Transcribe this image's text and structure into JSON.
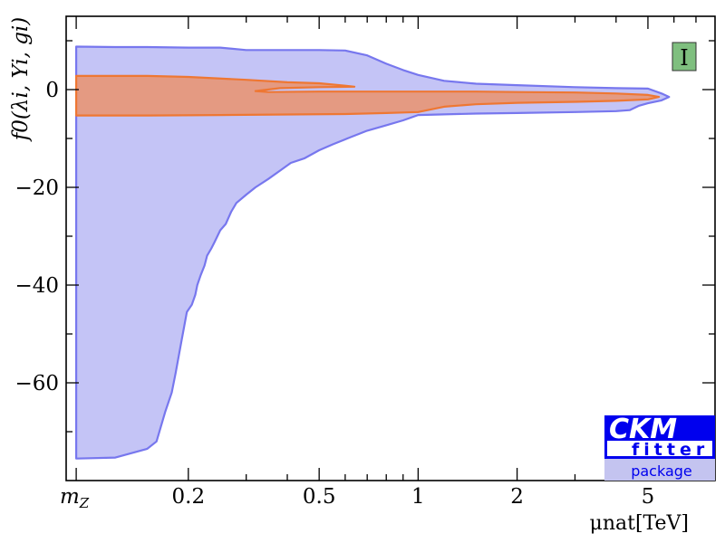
{
  "chart_data": {
    "type": "area",
    "title": "",
    "xlabel": "μnat[TeV]",
    "ylabel": "f0(λi, Yi, gi)",
    "x_scale": "log",
    "xlim": [
      0.085,
      8.0
    ],
    "ylim": [
      -80,
      15
    ],
    "x_ticks": [
      {
        "value": 0.0912,
        "label": "m_Z"
      },
      {
        "value": 0.2,
        "label": "0.2"
      },
      {
        "value": 0.5,
        "label": "0.5"
      },
      {
        "value": 1,
        "label": "1"
      },
      {
        "value": 2,
        "label": "2"
      },
      {
        "value": 5,
        "label": "5"
      }
    ],
    "y_ticks": [
      0,
      -20,
      -40,
      -60
    ],
    "y_tick_labels": [
      "0",
      "−20",
      "−40",
      "−60"
    ],
    "grid": false,
    "badge": "I",
    "series": [
      {
        "color": "#7777ee",
        "fill": "#c4c4f6",
        "polygon": [
          [
            0.0912,
            8.8
          ],
          [
            0.12,
            8.7
          ],
          [
            0.15,
            8.7
          ],
          [
            0.2,
            8.6
          ],
          [
            0.25,
            8.6
          ],
          [
            0.3,
            8.1
          ],
          [
            0.4,
            8.1
          ],
          [
            0.5,
            8.1
          ],
          [
            0.6,
            8.0
          ],
          [
            0.7,
            7.0
          ],
          [
            0.8,
            5.3
          ],
          [
            0.9,
            4.0
          ],
          [
            1.0,
            3.0
          ],
          [
            1.2,
            1.8
          ],
          [
            1.5,
            1.2
          ],
          [
            2.0,
            0.9
          ],
          [
            3.0,
            0.5
          ],
          [
            4.0,
            0.3
          ],
          [
            5.0,
            0.2
          ],
          [
            5.5,
            -0.8
          ],
          [
            5.8,
            -1.5
          ],
          [
            5.5,
            -2.2
          ],
          [
            5.0,
            -2.8
          ],
          [
            4.7,
            -3.3
          ],
          [
            4.4,
            -4.2
          ],
          [
            4.0,
            -4.4
          ],
          [
            3.0,
            -4.6
          ],
          [
            2.0,
            -4.8
          ],
          [
            1.5,
            -4.9
          ],
          [
            1.0,
            -5.2
          ],
          [
            0.9,
            -6.3
          ],
          [
            0.8,
            -7.3
          ],
          [
            0.7,
            -8.4
          ],
          [
            0.62,
            -9.8
          ],
          [
            0.55,
            -11.2
          ],
          [
            0.5,
            -12.4
          ],
          [
            0.45,
            -14.1
          ],
          [
            0.41,
            -15.0
          ],
          [
            0.38,
            -16.6
          ],
          [
            0.35,
            -18.3
          ],
          [
            0.32,
            -20.0
          ],
          [
            0.3,
            -21.5
          ],
          [
            0.28,
            -23.2
          ],
          [
            0.27,
            -25.0
          ],
          [
            0.26,
            -27.5
          ],
          [
            0.25,
            -28.8
          ],
          [
            0.24,
            -31.3
          ],
          [
            0.235,
            -32.5
          ],
          [
            0.228,
            -34.0
          ],
          [
            0.224,
            -36.0
          ],
          [
            0.218,
            -38.0
          ],
          [
            0.213,
            -40.0
          ],
          [
            0.21,
            -42.0
          ],
          [
            0.205,
            -44.0
          ],
          [
            0.198,
            -45.5
          ],
          [
            0.19,
            -52.0
          ],
          [
            0.183,
            -58.0
          ],
          [
            0.178,
            -62.0
          ],
          [
            0.17,
            -66.0
          ],
          [
            0.16,
            -72.0
          ],
          [
            0.15,
            -73.5
          ],
          [
            0.12,
            -75.3
          ],
          [
            0.0912,
            -75.5
          ]
        ]
      },
      {
        "color": "#ee7733",
        "fill": "#e49a82",
        "polygon": [
          [
            0.0912,
            2.8
          ],
          [
            0.15,
            2.8
          ],
          [
            0.2,
            2.6
          ],
          [
            0.3,
            2.0
          ],
          [
            0.4,
            1.5
          ],
          [
            0.5,
            1.3
          ],
          [
            0.6,
            0.8
          ],
          [
            0.64,
            0.6
          ],
          [
            0.5,
            0.5
          ],
          [
            0.38,
            0.3
          ],
          [
            0.32,
            -0.3
          ],
          [
            0.35,
            -0.5
          ],
          [
            0.5,
            -0.4
          ],
          [
            0.8,
            -0.4
          ],
          [
            1.0,
            -0.4
          ],
          [
            1.5,
            -0.4
          ],
          [
            2.0,
            -0.5
          ],
          [
            3.0,
            -0.6
          ],
          [
            4.0,
            -0.8
          ],
          [
            5.0,
            -1.1
          ],
          [
            5.4,
            -1.5
          ],
          [
            5.0,
            -2.0
          ],
          [
            4.0,
            -2.3
          ],
          [
            3.0,
            -2.5
          ],
          [
            2.0,
            -2.7
          ],
          [
            1.5,
            -3.0
          ],
          [
            1.2,
            -3.5
          ],
          [
            1.0,
            -4.6
          ],
          [
            0.8,
            -4.8
          ],
          [
            0.6,
            -5.0
          ],
          [
            0.4,
            -5.1
          ],
          [
            0.25,
            -5.2
          ],
          [
            0.15,
            -5.3
          ],
          [
            0.0912,
            -5.3
          ]
        ]
      }
    ]
  },
  "logo": {
    "name": "CKM",
    "sub": "fitter",
    "pkg": "package"
  }
}
